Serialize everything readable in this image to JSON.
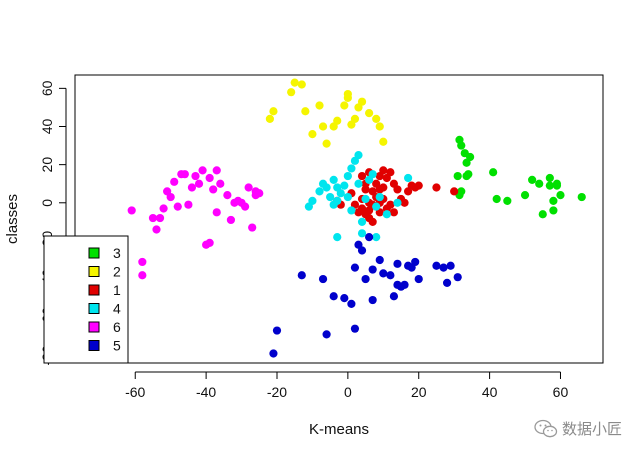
{
  "chart_data": {
    "type": "scatter",
    "title": "",
    "xlabel": "K-means",
    "ylabel": "classes",
    "xlim": [
      -77,
      72
    ],
    "ylim": [
      -84,
      67
    ],
    "xticks": [
      -60,
      -40,
      -20,
      0,
      20,
      40,
      60
    ],
    "yticks": [
      -80,
      -60,
      -40,
      -20,
      0,
      20,
      40,
      60
    ],
    "grid": false,
    "legend_position": "bottom-left",
    "series": [
      {
        "name": "3",
        "color": "#00e000",
        "points": [
          [
            31.5,
            33
          ],
          [
            32,
            30
          ],
          [
            33,
            26
          ],
          [
            33.5,
            21
          ],
          [
            34.5,
            24
          ],
          [
            31,
            14
          ],
          [
            33.5,
            14
          ],
          [
            34,
            15
          ],
          [
            32,
            6
          ],
          [
            31.5,
            4
          ],
          [
            41,
            16
          ],
          [
            42,
            2
          ],
          [
            45,
            1
          ],
          [
            50,
            4
          ],
          [
            52,
            12
          ],
          [
            54,
            10
          ],
          [
            55,
            -6
          ],
          [
            57,
            13
          ],
          [
            57,
            9
          ],
          [
            58,
            1
          ],
          [
            58,
            -4
          ],
          [
            59,
            10
          ],
          [
            59,
            9
          ],
          [
            60,
            4
          ],
          [
            66,
            3
          ]
        ]
      },
      {
        "name": "2",
        "color": "#f5f500",
        "points": [
          [
            -22,
            44
          ],
          [
            -21,
            48
          ],
          [
            -16,
            58
          ],
          [
            -15,
            63
          ],
          [
            -13,
            62
          ],
          [
            -12,
            48
          ],
          [
            -10,
            36
          ],
          [
            -8,
            51
          ],
          [
            -7,
            40
          ],
          [
            -6,
            31
          ],
          [
            -4,
            40
          ],
          [
            -3,
            43
          ],
          [
            -1,
            51
          ],
          [
            0,
            55
          ],
          [
            0,
            57
          ],
          [
            1,
            41
          ],
          [
            2,
            44
          ],
          [
            3,
            50
          ],
          [
            4,
            53
          ],
          [
            6,
            47
          ],
          [
            8,
            44
          ],
          [
            9,
            40
          ],
          [
            10,
            32
          ]
        ]
      },
      {
        "name": "1",
        "color": "#e00000",
        "points": [
          [
            -3,
            1
          ],
          [
            -2,
            -1
          ],
          [
            1,
            5
          ],
          [
            2,
            -1
          ],
          [
            3,
            -5
          ],
          [
            4,
            14
          ],
          [
            4,
            2
          ],
          [
            4,
            -3
          ],
          [
            5,
            10
          ],
          [
            5,
            7
          ],
          [
            5,
            -6
          ],
          [
            6,
            16
          ],
          [
            6,
            0
          ],
          [
            6,
            -4
          ],
          [
            6,
            -8
          ],
          [
            7,
            6
          ],
          [
            7,
            -1
          ],
          [
            7,
            -10
          ],
          [
            8,
            10
          ],
          [
            8,
            3
          ],
          [
            8,
            -2
          ],
          [
            9,
            14
          ],
          [
            9,
            7
          ],
          [
            9,
            0
          ],
          [
            9,
            -5
          ],
          [
            10,
            17
          ],
          [
            10,
            8
          ],
          [
            10,
            2
          ],
          [
            11,
            13
          ],
          [
            11,
            -3
          ],
          [
            12,
            16
          ],
          [
            12,
            -1
          ],
          [
            13,
            10
          ],
          [
            13,
            -5
          ],
          [
            14,
            7
          ],
          [
            15,
            2
          ],
          [
            16,
            0
          ],
          [
            17,
            6
          ],
          [
            18,
            9
          ],
          [
            19,
            8
          ],
          [
            20,
            9
          ],
          [
            25,
            8
          ],
          [
            30,
            6
          ]
        ]
      },
      {
        "name": "4",
        "color": "#00e5ee",
        "points": [
          [
            -11,
            -2
          ],
          [
            -10,
            1
          ],
          [
            -8,
            6
          ],
          [
            -7,
            10
          ],
          [
            -6,
            8
          ],
          [
            -5,
            3
          ],
          [
            -4,
            -1
          ],
          [
            -4,
            12
          ],
          [
            -3,
            8
          ],
          [
            -3,
            1
          ],
          [
            -2,
            5
          ],
          [
            -1,
            9
          ],
          [
            0,
            14
          ],
          [
            0,
            3
          ],
          [
            1,
            -4
          ],
          [
            1,
            18
          ],
          [
            2,
            22
          ],
          [
            3,
            25
          ],
          [
            3,
            10
          ],
          [
            4,
            -10
          ],
          [
            4,
            -16
          ],
          [
            5,
            2
          ],
          [
            6,
            12
          ],
          [
            7,
            15
          ],
          [
            8,
            -2
          ],
          [
            9,
            3
          ],
          [
            11,
            -6
          ],
          [
            14,
            0
          ],
          [
            17,
            13
          ],
          [
            -3,
            -18
          ],
          [
            8,
            -18
          ]
        ]
      },
      {
        "name": "6",
        "color": "#ff00ff",
        "points": [
          [
            -61,
            -4
          ],
          [
            -58,
            -31
          ],
          [
            -58,
            -38
          ],
          [
            -55,
            -8
          ],
          [
            -54,
            -14
          ],
          [
            -53,
            -8
          ],
          [
            -52,
            -3
          ],
          [
            -51,
            6
          ],
          [
            -50,
            3
          ],
          [
            -49,
            11
          ],
          [
            -48,
            -2
          ],
          [
            -47,
            15
          ],
          [
            -46,
            15
          ],
          [
            -45,
            -1
          ],
          [
            -44,
            8
          ],
          [
            -43,
            14
          ],
          [
            -42,
            10
          ],
          [
            -41,
            17
          ],
          [
            -40,
            -22
          ],
          [
            -39,
            -21
          ],
          [
            -39,
            13
          ],
          [
            -38,
            7
          ],
          [
            -37,
            -5
          ],
          [
            -37,
            17
          ],
          [
            -36,
            10
          ],
          [
            -34,
            4
          ],
          [
            -33,
            -9
          ],
          [
            -32,
            0
          ],
          [
            -31,
            1
          ],
          [
            -30,
            0
          ],
          [
            -29,
            -2
          ],
          [
            -28,
            8
          ],
          [
            -27,
            -13
          ],
          [
            -26,
            4
          ],
          [
            -26,
            6
          ],
          [
            -25,
            5
          ]
        ]
      },
      {
        "name": "5",
        "color": "#0000cc",
        "points": [
          [
            -21,
            -79
          ],
          [
            -20,
            -67
          ],
          [
            -13,
            -38
          ],
          [
            -7,
            -40
          ],
          [
            -6,
            -69
          ],
          [
            -4,
            -49
          ],
          [
            -1,
            -50
          ],
          [
            1,
            -53
          ],
          [
            2,
            -66
          ],
          [
            2,
            -34
          ],
          [
            3,
            -22
          ],
          [
            4,
            -25
          ],
          [
            5,
            -40
          ],
          [
            6,
            -18
          ],
          [
            7,
            -51
          ],
          [
            7,
            -35
          ],
          [
            9,
            -30
          ],
          [
            10,
            -37
          ],
          [
            12,
            -38
          ],
          [
            13,
            -49
          ],
          [
            14,
            -32
          ],
          [
            14,
            -43
          ],
          [
            15,
            -44
          ],
          [
            16,
            -43
          ],
          [
            17,
            -33
          ],
          [
            18,
            -34
          ],
          [
            19,
            -31
          ],
          [
            20,
            -40
          ],
          [
            25,
            -33
          ],
          [
            27,
            -34
          ],
          [
            28,
            -42
          ],
          [
            29,
            -33
          ],
          [
            31,
            -39
          ]
        ]
      }
    ],
    "legend_order": [
      "3",
      "2",
      "1",
      "4",
      "6",
      "5"
    ]
  },
  "watermark": {
    "text": "数据小匠",
    "icon": "wechat-icon"
  }
}
